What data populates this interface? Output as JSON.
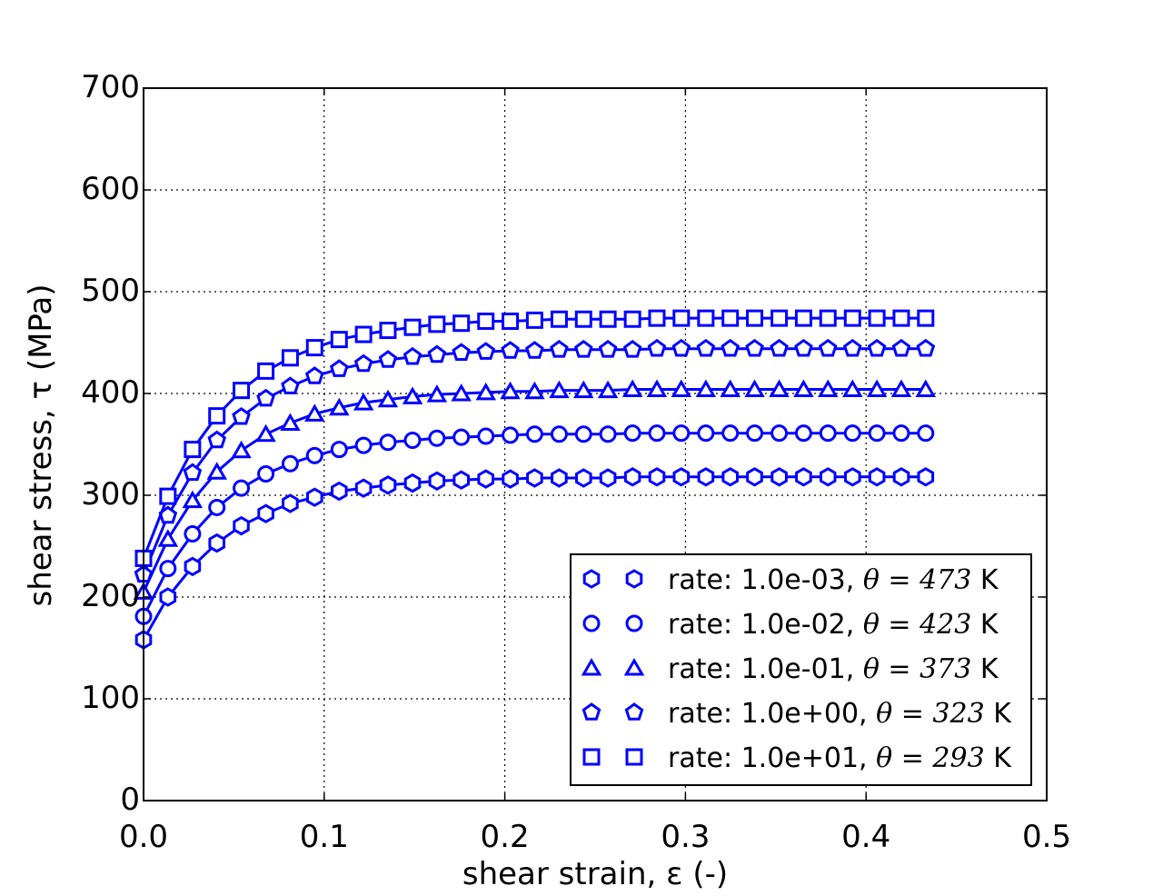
{
  "chart_data": {
    "type": "line",
    "title": "",
    "xlabel": "shear strain, ε (-)",
    "ylabel": "shear stress, τ (MPa)",
    "xlim": [
      0.0,
      0.5
    ],
    "ylim": [
      0,
      700
    ],
    "xticks": [
      "0.0",
      "0.1",
      "0.2",
      "0.3",
      "0.4",
      "0.5"
    ],
    "yticks": [
      "0",
      "100",
      "200",
      "300",
      "400",
      "500",
      "600",
      "700"
    ],
    "grid": true,
    "legend_placement": "lower-right",
    "color": "#0000ff",
    "x": [
      0,
      0.0135,
      0.0271,
      0.0406,
      0.0541,
      0.0677,
      0.0812,
      0.0947,
      0.1083,
      0.1218,
      0.1353,
      0.1489,
      0.1624,
      0.1759,
      0.1895,
      0.203,
      0.2165,
      0.2301,
      0.2436,
      0.2571,
      0.2707,
      0.2842,
      0.2977,
      0.3113,
      0.3248,
      0.3383,
      0.3519,
      0.3654,
      0.3789,
      0.3925,
      0.406,
      0.4195,
      0.433
    ],
    "series": [
      {
        "name": "rate: 1.0e-03, θ = 473 K",
        "label_prefix": "rate: 1.0e-03, ",
        "theta": "473",
        "unit": "K",
        "marker": "hexagon",
        "values": [
          158,
          200,
          230,
          253,
          270,
          282,
          292,
          298,
          304,
          307,
          310,
          312,
          314,
          315,
          316,
          316,
          317,
          317,
          317,
          317,
          318,
          318,
          318,
          318,
          318,
          318,
          318,
          318,
          318,
          318,
          318,
          318,
          318
        ]
      },
      {
        "name": "rate: 1.0e-02, θ = 423 K",
        "label_prefix": "rate: 1.0e-02, ",
        "theta": "423",
        "unit": "K",
        "marker": "circle",
        "values": [
          181,
          228,
          262,
          288,
          307,
          321,
          331,
          339,
          345,
          349,
          352,
          354,
          356,
          357,
          358,
          359,
          360,
          360,
          360,
          360,
          361,
          361,
          361,
          361,
          361,
          361,
          361,
          361,
          361,
          361,
          361,
          361,
          361
        ]
      },
      {
        "name": "rate: 1.0e-01, θ = 373 K",
        "label_prefix": "rate: 1.0e-01, ",
        "theta": "373",
        "unit": "K",
        "marker": "triangle",
        "values": [
          205,
          257,
          295,
          323,
          344,
          360,
          371,
          380,
          386,
          391,
          394,
          397,
          399,
          400,
          401,
          402,
          402,
          403,
          403,
          403,
          404,
          404,
          404,
          404,
          404,
          404,
          404,
          404,
          404,
          404,
          404,
          404,
          404
        ]
      },
      {
        "name": "rate: 1.0e+00, θ = 323 K",
        "label_prefix": "rate: 1.0e+00, ",
        "theta": "323",
        "unit": "K",
        "marker": "pentagon",
        "values": [
          222,
          280,
          322,
          354,
          377,
          395,
          407,
          417,
          424,
          429,
          433,
          436,
          438,
          440,
          441,
          442,
          442,
          443,
          443,
          443,
          443,
          444,
          444,
          444,
          444,
          444,
          444,
          444,
          444,
          444,
          444,
          444,
          444
        ]
      },
      {
        "name": "rate: 1.0e+01, θ = 293 K",
        "label_prefix": "rate: 1.0e+01, ",
        "theta": "293",
        "unit": "K",
        "marker": "square",
        "values": [
          238,
          299,
          345,
          378,
          403,
          422,
          435,
          445,
          453,
          458,
          462,
          465,
          468,
          469,
          471,
          471,
          472,
          473,
          473,
          473,
          473,
          474,
          474,
          474,
          474,
          474,
          474,
          474,
          474,
          474,
          474,
          474,
          474
        ]
      }
    ]
  }
}
